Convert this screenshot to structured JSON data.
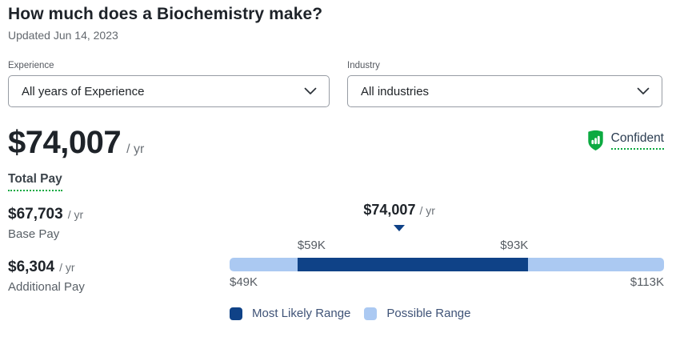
{
  "page": {
    "title": "How much does a Biochemistry make?",
    "updated": "Updated Jun 14, 2023"
  },
  "filters": {
    "experience": {
      "label": "Experience",
      "value": "All years of Experience"
    },
    "industry": {
      "label": "Industry",
      "value": "All industries"
    }
  },
  "total_pay": {
    "amount": "$74,007",
    "per": "/ yr",
    "label": "Total Pay",
    "confidence": "Confident"
  },
  "breakdown": {
    "base": {
      "amount": "$67,703",
      "per": "/ yr",
      "label": "Base Pay"
    },
    "additional": {
      "amount": "$6,304",
      "per": "/ yr",
      "label": "Additional Pay"
    }
  },
  "chart_data": {
    "type": "range-bar",
    "median": 74007,
    "median_label": "$74,007",
    "median_per": "/ yr",
    "possible_range": [
      49000,
      113000
    ],
    "most_likely_range": [
      59000,
      93000
    ],
    "tick_labels": {
      "likely_low": "$59K",
      "likely_high": "$93K",
      "possible_low": "$49K",
      "possible_high": "$113K"
    },
    "legend": [
      {
        "label": "Most Likely Range",
        "color": "#0f4287"
      },
      {
        "label": "Possible Range",
        "color": "#abc9f2"
      }
    ]
  },
  "colors": {
    "accent_green": "#0caa41",
    "dark_blue": "#0f4287",
    "light_blue": "#abc9f2"
  }
}
